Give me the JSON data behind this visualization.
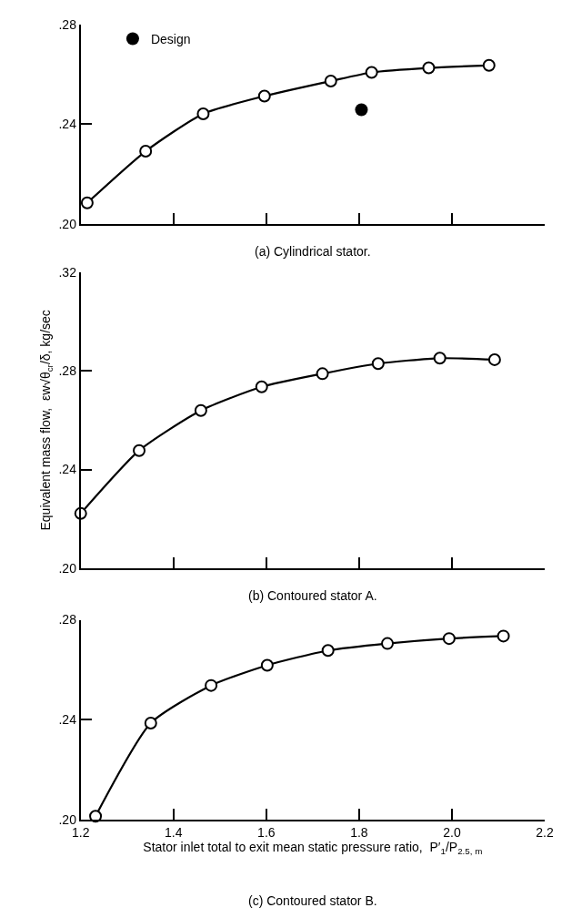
{
  "chart_data": [
    {
      "type": "line",
      "line_style": "solid",
      "marker": "circle",
      "legend": "top left",
      "tick_labels": "y",
      "xlim": [
        1.2,
        2.2
      ],
      "xticks": [
        {
          "value": 1.2,
          "label": null
        },
        {
          "value": 1.4,
          "label": null
        },
        {
          "value": 1.6,
          "label": null
        },
        {
          "value": 1.8,
          "label": null
        },
        {
          "value": 2.0,
          "label": null
        },
        {
          "value": 2.2,
          "label": null
        }
      ],
      "ylim": [
        0.2,
        0.28
      ],
      "yticks": [
        {
          "value": 0.2,
          "label": ".20"
        },
        {
          "value": 0.24,
          "label": ".24"
        },
        {
          "value": 0.28,
          "label": ".28"
        }
      ],
      "annotations": [
        "(a) Cylindrical stator."
      ],
      "series": [
        {
          "color": "#000000",
          "x": [
            1.214,
            1.34,
            1.464,
            1.596,
            1.739,
            1.827,
            1.95,
            2.08
          ],
          "values": [
            0.2085,
            0.2292,
            0.2442,
            0.2513,
            0.2573,
            0.2608,
            0.2626,
            0.2636
          ]
        },
        {
          "type": "scatter",
          "name": "Design",
          "color": "#000000",
          "x": [
            1.805
          ],
          "values": [
            0.2458
          ]
        }
      ]
    },
    {
      "type": "line",
      "line_style": "solid",
      "marker": "circle",
      "tick_labels": "y",
      "ylabel": "Equivalent mass flow,  εw√θ$_{cr}$/δ, kg/sec",
      "xlim": [
        1.2,
        2.2
      ],
      "xticks": [
        {
          "value": 1.2,
          "label": null
        },
        {
          "value": 1.4,
          "label": null
        },
        {
          "value": 1.6,
          "label": null
        },
        {
          "value": 1.8,
          "label": null
        },
        {
          "value": 2.0,
          "label": null
        },
        {
          "value": 2.2,
          "label": null
        }
      ],
      "ylim": [
        0.2,
        0.32
      ],
      "yticks": [
        {
          "value": 0.2,
          "label": ".20"
        },
        {
          "value": 0.24,
          "label": ".24"
        },
        {
          "value": 0.28,
          "label": ".28"
        },
        {
          "value": 0.32,
          "label": ".32"
        }
      ],
      "annotations": [
        "(b) Contoured stator A."
      ],
      "series": [
        {
          "color": "#000000",
          "x": [
            1.2,
            1.326,
            1.459,
            1.59,
            1.721,
            1.841,
            1.974,
            2.092
          ],
          "values": [
            0.2222,
            0.2477,
            0.2639,
            0.2735,
            0.2788,
            0.2829,
            0.2851,
            0.2845
          ]
        }
      ]
    },
    {
      "type": "line",
      "line_style": "solid",
      "marker": "circle",
      "xlabel": "Stator inlet total to exit mean static pressure ratio,  P′$_{1}$/P$_{2.5, m}$",
      "xlim": [
        1.2,
        2.2
      ],
      "xticks": [
        {
          "value": 1.2,
          "label": "1.2"
        },
        {
          "value": 1.4,
          "label": "1.4"
        },
        {
          "value": 1.6,
          "label": "1.6"
        },
        {
          "value": 1.8,
          "label": "1.8"
        },
        {
          "value": 2.0,
          "label": "2.0"
        },
        {
          "value": 2.2,
          "label": "2.2"
        }
      ],
      "ylim": [
        0.2,
        0.28
      ],
      "yticks": [
        {
          "value": 0.2,
          "label": ".20"
        },
        {
          "value": 0.24,
          "label": ".24"
        },
        {
          "value": 0.28,
          "label": ".28"
        }
      ],
      "annotations": [
        "(c) Contoured stator B."
      ],
      "series": [
        {
          "color": "#000000",
          "x": [
            1.232,
            1.351,
            1.481,
            1.602,
            1.733,
            1.861,
            1.994,
            2.111
          ],
          "values": [
            0.2013,
            0.2386,
            0.2537,
            0.2618,
            0.2677,
            0.2705,
            0.2725,
            0.2735
          ]
        }
      ]
    }
  ]
}
